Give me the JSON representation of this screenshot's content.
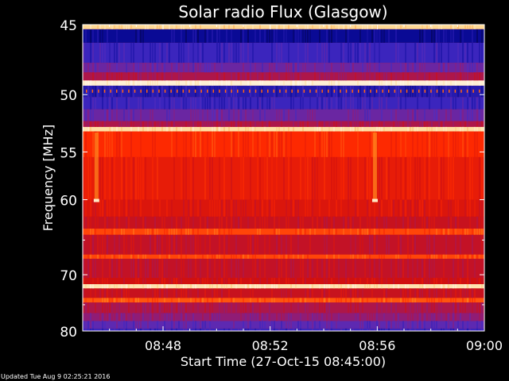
{
  "chart_data": {
    "type": "heatmap",
    "title": "Solar radio Flux (Glasgow)",
    "xlabel": "Start Time (27-Oct-15 08:45:00)",
    "ylabel": "Frequency [MHz]",
    "x_ticks": [
      "08:48",
      "08:52",
      "08:56",
      "09:00"
    ],
    "x_tick_minutes": [
      3,
      7,
      11,
      15
    ],
    "xlim_minutes": [
      0,
      15
    ],
    "y_ticks": [
      45,
      50,
      55,
      60,
      70,
      80
    ],
    "ylim": [
      45,
      80
    ],
    "y_scale": "reciprocal",
    "grid": false,
    "colormap": [
      "#00001e",
      "#0a0a9a",
      "#4a2ec8",
      "#9a1a6a",
      "#d01010",
      "#ff2a00",
      "#ff8a20",
      "#ffd890",
      "#fff6ea"
    ],
    "bands": [
      {
        "f0": 45.0,
        "f1": 45.3,
        "level": 0.88
      },
      {
        "f0": 45.3,
        "f1": 46.2,
        "level": 0.12
      },
      {
        "f0": 46.2,
        "f1": 47.6,
        "level": 0.22
      },
      {
        "f0": 47.6,
        "f1": 48.3,
        "level": 0.3
      },
      {
        "f0": 48.3,
        "f1": 48.9,
        "level": 0.42
      },
      {
        "f0": 48.9,
        "f1": 49.3,
        "level": 0.97
      },
      {
        "f0": 49.3,
        "f1": 50.2,
        "level": 0.18
      },
      {
        "f0": 50.2,
        "f1": 51.2,
        "level": 0.22
      },
      {
        "f0": 51.2,
        "f1": 52.2,
        "level": 0.3
      },
      {
        "f0": 52.2,
        "f1": 52.7,
        "level": 0.42
      },
      {
        "f0": 52.7,
        "f1": 53.1,
        "level": 0.9
      },
      {
        "f0": 53.1,
        "f1": 55.5,
        "level": 0.62
      },
      {
        "f0": 55.5,
        "f1": 60.0,
        "level": 0.56
      },
      {
        "f0": 60.0,
        "f1": 62.0,
        "level": 0.53
      },
      {
        "f0": 62.0,
        "f1": 63.5,
        "level": 0.48
      },
      {
        "f0": 63.5,
        "f1": 64.3,
        "level": 0.66
      },
      {
        "f0": 64.3,
        "f1": 67.0,
        "level": 0.47
      },
      {
        "f0": 67.0,
        "f1": 67.6,
        "level": 0.66
      },
      {
        "f0": 67.6,
        "f1": 70.5,
        "level": 0.47
      },
      {
        "f0": 70.5,
        "f1": 71.5,
        "level": 0.5
      },
      {
        "f0": 71.5,
        "f1": 72.2,
        "level": 0.92
      },
      {
        "f0": 72.2,
        "f1": 73.8,
        "level": 0.48
      },
      {
        "f0": 73.8,
        "f1": 74.6,
        "level": 0.68
      },
      {
        "f0": 74.6,
        "f1": 76.5,
        "level": 0.42
      },
      {
        "f0": 76.5,
        "f1": 78.0,
        "level": 0.36
      },
      {
        "f0": 78.0,
        "f1": 79.5,
        "level": 0.28
      },
      {
        "f0": 79.5,
        "f1": 80.0,
        "level": 0.22
      }
    ],
    "events": [
      {
        "minute": 0.5,
        "f0": 53.2,
        "f1": 60.0,
        "level": 0.75
      },
      {
        "minute": 10.9,
        "f0": 53.2,
        "f1": 60.0,
        "level": 0.75
      }
    ]
  },
  "footer": {
    "updated": "Updated Tue Aug  9 02:25:21 2016"
  }
}
